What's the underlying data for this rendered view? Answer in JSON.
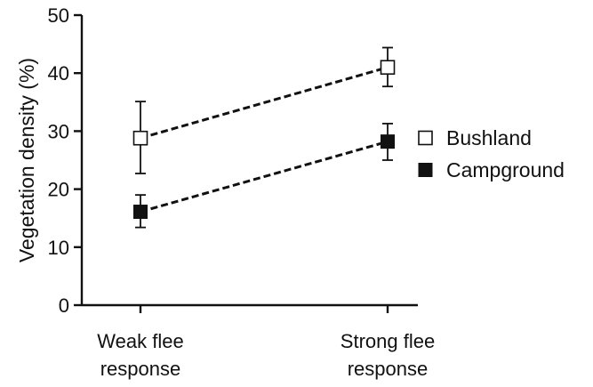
{
  "chart_data": {
    "type": "line",
    "categories": [
      "Weak flee response",
      "Strong flee response"
    ],
    "category_lines": [
      [
        "Weak flee",
        "response"
      ],
      [
        "Strong flee",
        "response"
      ]
    ],
    "ylabel": "Vegetation density (%)",
    "ylim": [
      0,
      50
    ],
    "yticks": [
      0,
      10,
      20,
      30,
      40,
      50
    ],
    "grid": false,
    "legend_position": "right",
    "series": [
      {
        "name": "Bushland",
        "marker": "open-square",
        "color": "#111111",
        "values": [
          28.8,
          41.0
        ],
        "error_low": [
          22.7,
          37.7
        ],
        "error_high": [
          35.1,
          44.4
        ]
      },
      {
        "name": "Campground",
        "marker": "filled-square",
        "color": "#111111",
        "values": [
          16.1,
          28.2
        ],
        "error_low": [
          13.4,
          25.0
        ],
        "error_high": [
          19.0,
          31.3
        ]
      }
    ]
  }
}
